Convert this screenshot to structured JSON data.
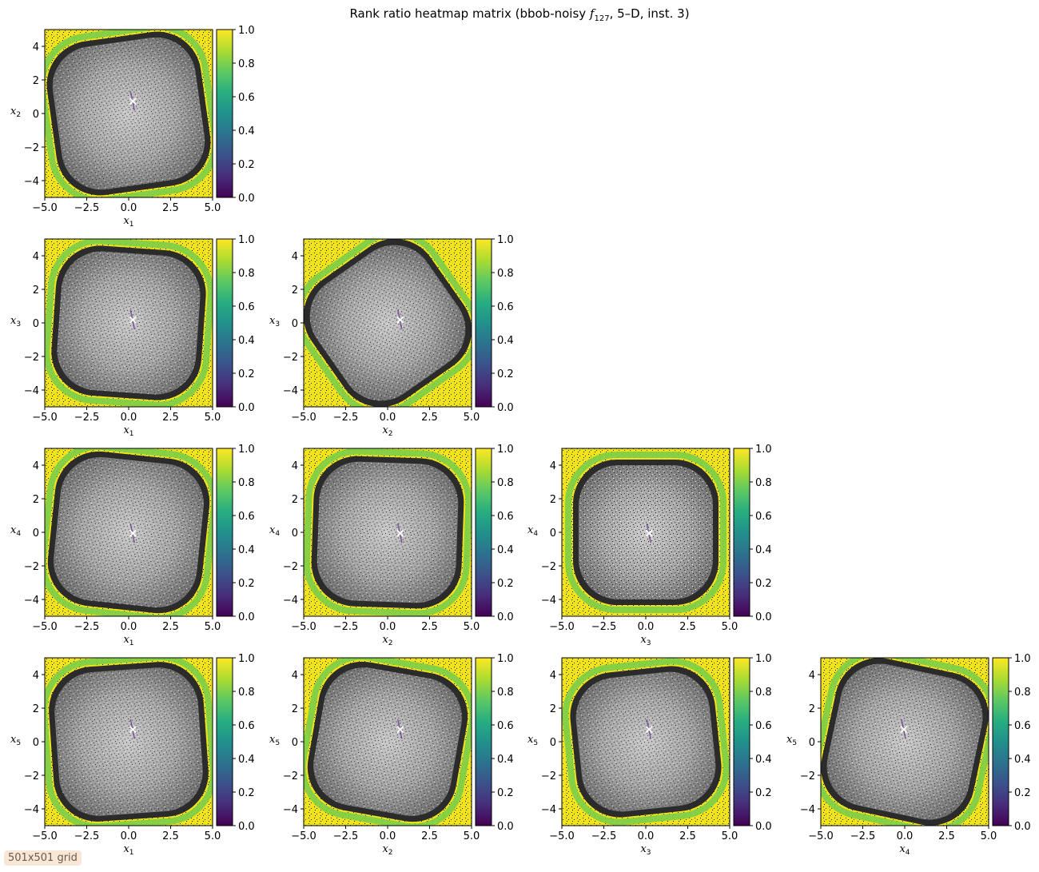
{
  "figure": {
    "title_prefix": "Rank ratio heatmap matrix (bbob-noisy ",
    "title_func": "f",
    "title_sub": "127",
    "title_suffix": ", 5–D, inst. 3)",
    "badge": "501x501 grid"
  },
  "chart_data": {
    "type": "heatmap",
    "colormap": "viridis",
    "grid_resolution": [
      501,
      501
    ],
    "colorbar": {
      "range": [
        0,
        1
      ],
      "ticks": [
        "0.0",
        "0.2",
        "0.4",
        "0.6",
        "0.8",
        "1.0"
      ]
    },
    "axis_range": [
      -5,
      5
    ],
    "x_ticks": [
      "−5.0",
      "−2.5",
      "0.0",
      "2.5",
      "5.0"
    ],
    "y_ticks": [
      "−4",
      "−2",
      "0",
      "2",
      "4"
    ],
    "optimum_marker": "×",
    "optimum": {
      "x1": 0.25,
      "x2": 0.75,
      "x3": 0.2,
      "x4": -0.05,
      "x5": 0.75
    },
    "panels": [
      {
        "row": 0,
        "col": 0,
        "x": "x1",
        "y": "x2",
        "xlabel": "x",
        "xsub": "1",
        "ylabel": "x",
        "ysub": "2"
      },
      {
        "row": 1,
        "col": 0,
        "x": "x1",
        "y": "x3",
        "xlabel": "x",
        "xsub": "1",
        "ylabel": "x",
        "ysub": "3"
      },
      {
        "row": 1,
        "col": 1,
        "x": "x2",
        "y": "x3",
        "xlabel": "x",
        "xsub": "2",
        "ylabel": "x",
        "ysub": "3"
      },
      {
        "row": 2,
        "col": 0,
        "x": "x1",
        "y": "x4",
        "xlabel": "x",
        "xsub": "1",
        "ylabel": "x",
        "ysub": "4"
      },
      {
        "row": 2,
        "col": 1,
        "x": "x2",
        "y": "x4",
        "xlabel": "x",
        "xsub": "2",
        "ylabel": "x",
        "ysub": "4"
      },
      {
        "row": 2,
        "col": 2,
        "x": "x3",
        "y": "x4",
        "xlabel": "x",
        "xsub": "3",
        "ylabel": "x",
        "ysub": "4"
      },
      {
        "row": 3,
        "col": 0,
        "x": "x1",
        "y": "x5",
        "xlabel": "x",
        "xsub": "1",
        "ylabel": "x",
        "ysub": "5"
      },
      {
        "row": 3,
        "col": 1,
        "x": "x2",
        "y": "x5",
        "xlabel": "x",
        "xsub": "2",
        "ylabel": "x",
        "ysub": "5"
      },
      {
        "row": 3,
        "col": 2,
        "x": "x3",
        "y": "x5",
        "xlabel": "x",
        "xsub": "3",
        "ylabel": "x",
        "ysub": "5"
      },
      {
        "row": 3,
        "col": 3,
        "x": "x4",
        "y": "x5",
        "xlabel": "x",
        "xsub": "4",
        "ylabel": "x",
        "ysub": "5"
      }
    ]
  }
}
